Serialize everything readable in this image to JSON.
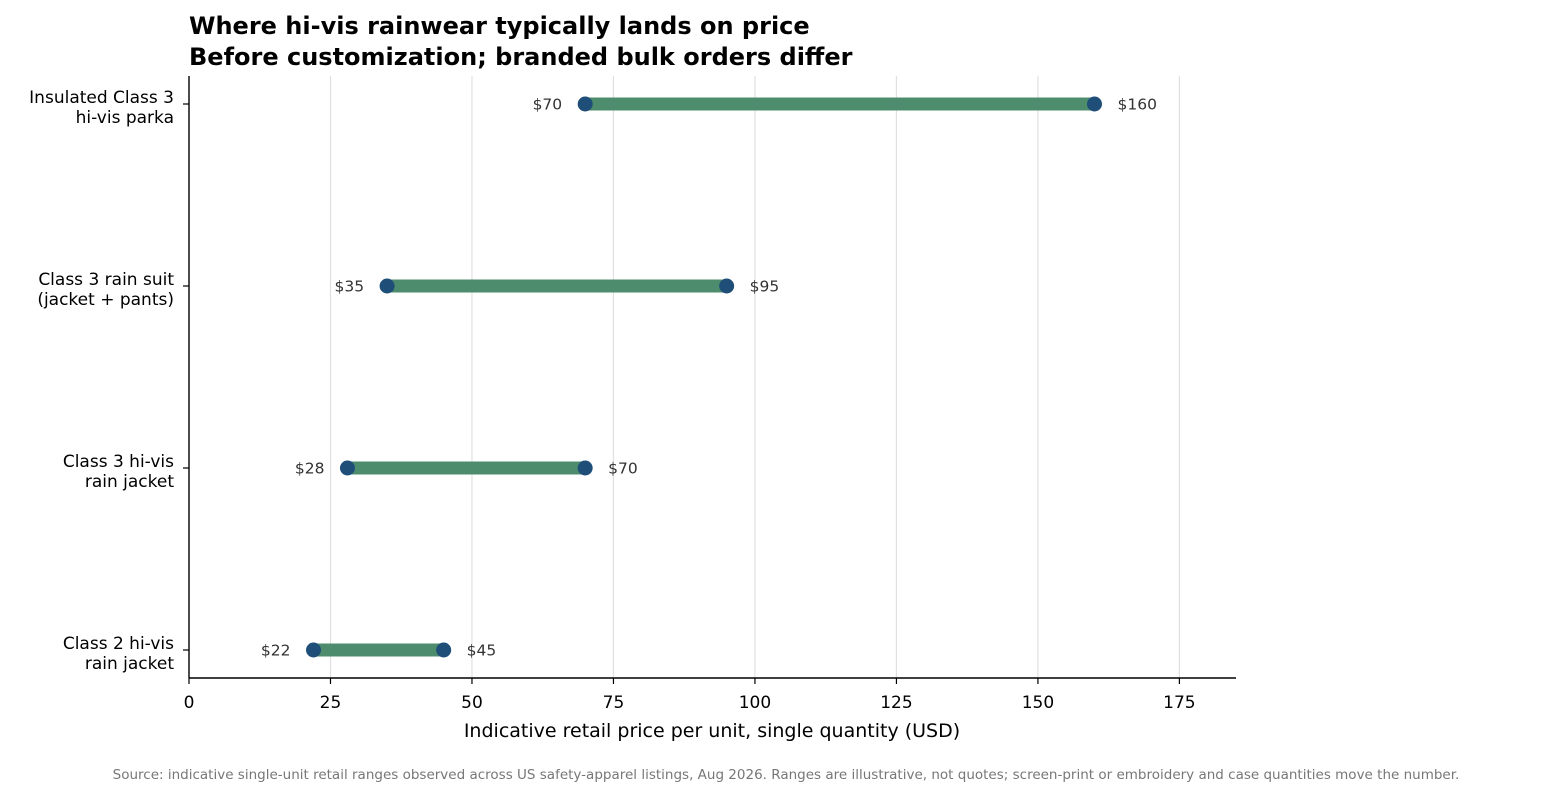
{
  "chart_data": {
    "type": "dumbbell",
    "title_lines": [
      "Where hi-vis rainwear typically lands on price",
      "Before customization; branded bulk orders differ"
    ],
    "xlabel": "Indicative retail price per unit, single quantity (USD)",
    "ylabel": "",
    "xlim": [
      0,
      185
    ],
    "x_ticks": [
      0,
      25,
      50,
      75,
      100,
      125,
      150,
      175
    ],
    "grid": "vertical",
    "legend": "none",
    "categories": [
      {
        "label_lines": [
          "Insulated Class 3",
          "hi-vis parka"
        ],
        "low": 70,
        "high": 160,
        "low_label": "$70",
        "high_label": "$160"
      },
      {
        "label_lines": [
          "Class 3 rain suit",
          "(jacket + pants)"
        ],
        "low": 35,
        "high": 95,
        "low_label": "$35",
        "high_label": "$95"
      },
      {
        "label_lines": [
          "Class 3 hi-vis",
          "rain jacket"
        ],
        "low": 28,
        "high": 70,
        "low_label": "$28",
        "high_label": "$70"
      },
      {
        "label_lines": [
          "Class 2 hi-vis",
          "rain jacket"
        ],
        "low": 22,
        "high": 45,
        "low_label": "$22",
        "high_label": "$45"
      }
    ],
    "source": "Source: indicative single-unit retail ranges observed across US safety-apparel listings, Aug 2026. Ranges are illustrative, not quotes; screen-print or embroidery and case quantities move the number."
  },
  "colors": {
    "bar": "#4e8c6e",
    "dot": "#1f4e79",
    "grid": "#e0e0e0",
    "axis": "#000000"
  }
}
